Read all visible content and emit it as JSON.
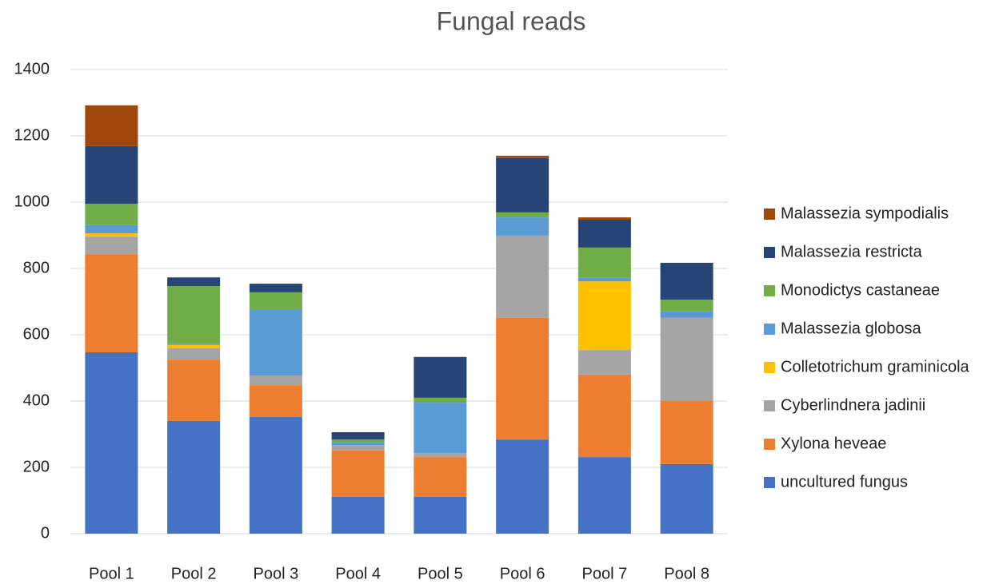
{
  "chart_data": {
    "type": "stacked_bar",
    "title": "Fungal reads",
    "categories": [
      "Pool 1",
      "Pool 2",
      "Pool 3",
      "Pool 4",
      "Pool 5",
      "Pool 6",
      "Pool 7",
      "Pool 8"
    ],
    "series": [
      {
        "name": "uncultured fungus",
        "color": "#4472c4",
        "values": [
          547,
          340,
          352,
          111,
          111,
          284,
          231,
          210
        ]
      },
      {
        "name": "Xylona heveae",
        "color": "#ed7d31",
        "values": [
          296,
          185,
          96,
          140,
          120,
          367,
          249,
          192
        ]
      },
      {
        "name": "Cyberlindnera jadinii",
        "color": "#a5a5a5",
        "values": [
          53,
          34,
          29,
          16,
          12,
          248,
          74,
          249
        ]
      },
      {
        "name": "Colletotrichum graminicola",
        "color": "#ffc000",
        "values": [
          10,
          10,
          0,
          0,
          0,
          0,
          207,
          0
        ]
      },
      {
        "name": "Malassezia globosa",
        "color": "#5b9bd5",
        "values": [
          26,
          4,
          200,
          8,
          152,
          55,
          12,
          21
        ]
      },
      {
        "name": "Monodictys castaneae",
        "color": "#70ad47",
        "values": [
          63,
          174,
          51,
          9,
          15,
          15,
          90,
          34
        ]
      },
      {
        "name": "Malassezia restricta",
        "color": "#264478",
        "values": [
          174,
          26,
          26,
          22,
          123,
          164,
          84,
          111
        ]
      },
      {
        "name": "Malassezia sympodialis",
        "color": "#9e480e",
        "values": [
          123,
          0,
          0,
          0,
          0,
          7,
          7,
          0
        ]
      }
    ],
    "ylim": [
      0,
      1400
    ],
    "yticks": [
      0,
      200,
      400,
      600,
      800,
      1000,
      1200,
      1400
    ],
    "grid": true,
    "legend": "right"
  }
}
